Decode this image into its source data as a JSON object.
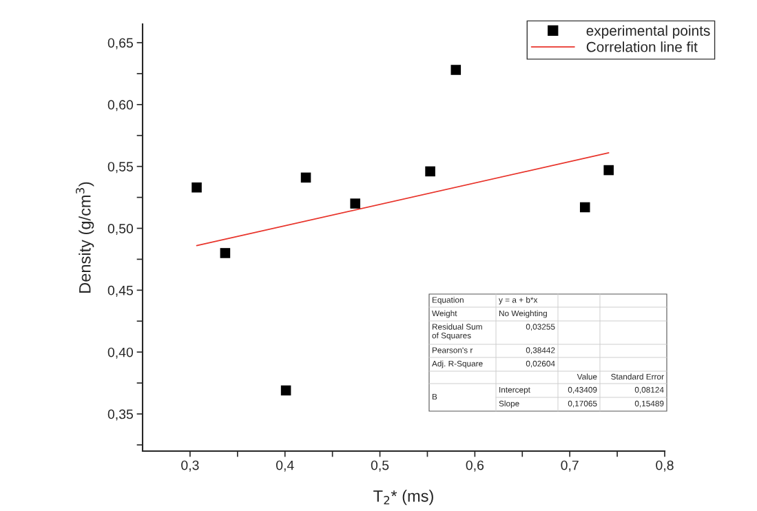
{
  "chart_data": {
    "type": "scatter",
    "xlabel": "T$_{2}$* (ms)",
    "ylabel": "Density (g/cm$^{3}$)",
    "xlim": [
      0.25,
      0.8
    ],
    "xticks": [
      {
        "value": 0.3,
        "label": "0,3"
      },
      {
        "value": 0.35,
        "label": null
      },
      {
        "value": 0.4,
        "label": "0,4"
      },
      {
        "value": 0.45,
        "label": null
      },
      {
        "value": 0.5,
        "label": "0,5"
      },
      {
        "value": 0.55,
        "label": null
      },
      {
        "value": 0.6,
        "label": "0,6"
      },
      {
        "value": 0.65,
        "label": null
      },
      {
        "value": 0.7,
        "label": "0,7"
      },
      {
        "value": 0.75,
        "label": null
      },
      {
        "value": 0.8,
        "label": "0,8"
      }
    ],
    "ylim": [
      0.32,
      0.665
    ],
    "yticks": [
      {
        "value": 0.325,
        "label": null
      },
      {
        "value": 0.35,
        "label": "0,35"
      },
      {
        "value": 0.375,
        "label": null
      },
      {
        "value": 0.4,
        "label": "0,40"
      },
      {
        "value": 0.425,
        "label": null
      },
      {
        "value": 0.45,
        "label": "0,45"
      },
      {
        "value": 0.475,
        "label": null
      },
      {
        "value": 0.5,
        "label": "0,50"
      },
      {
        "value": 0.525,
        "label": null
      },
      {
        "value": 0.55,
        "label": "0,55"
      },
      {
        "value": 0.575,
        "label": null
      },
      {
        "value": 0.6,
        "label": "0,60"
      },
      {
        "value": 0.625,
        "label": null
      },
      {
        "value": 0.65,
        "label": "0,65"
      }
    ],
    "series": [
      {
        "name": "experimental points",
        "type": "scatter",
        "marker": "square",
        "color": "#000000",
        "x": [
          0.307,
          0.337,
          0.401,
          0.422,
          0.474,
          0.553,
          0.58,
          0.716,
          0.741
        ],
        "values": [
          0.533,
          0.48,
          0.369,
          0.541,
          0.52,
          0.546,
          0.628,
          0.517,
          0.547
        ]
      },
      {
        "name": "Correlation line fit",
        "type": "line",
        "line_style": "solid",
        "color": "#e8332a",
        "x": [
          0.307,
          0.741
        ],
        "values": [
          0.486,
          0.561
        ]
      }
    ],
    "legend": "top right",
    "grid": false,
    "annotations": [
      "Equation",
      "y = a + b*x",
      "Weight",
      "No Weighting",
      "Residual Sum\nof Squares",
      "0,03255",
      "Pearson's r",
      "0,38442",
      "Adj. R-Square",
      "0,02604",
      "Value",
      "Standard Error",
      "B",
      "Intercept",
      "0,43409",
      "0,08124",
      "Slope",
      "0,17065",
      "0,15489"
    ]
  }
}
